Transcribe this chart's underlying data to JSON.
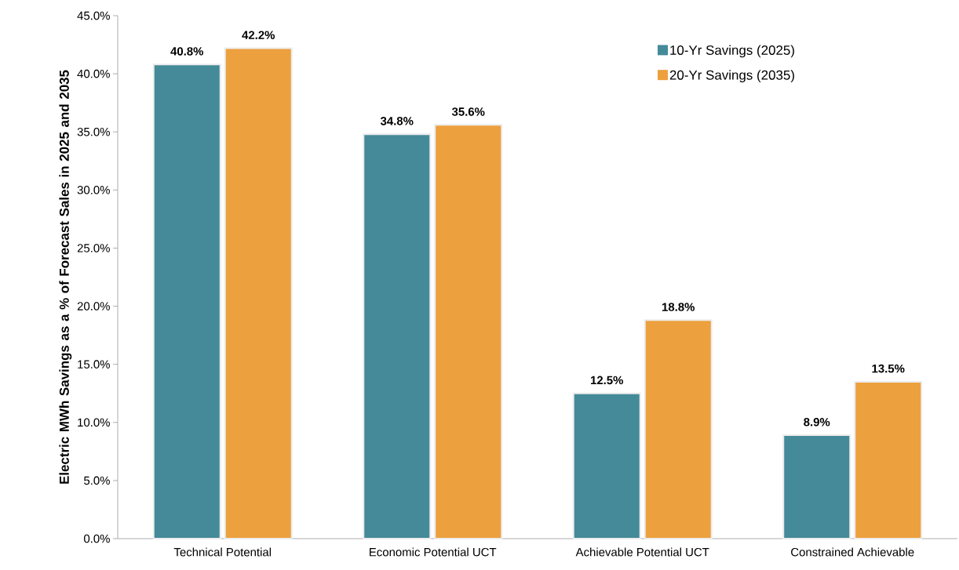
{
  "chart_data": {
    "type": "bar",
    "ylabel": "Electric MWh Savings as a % of Forecast Sales in 2025 and 2035",
    "categories": [
      "Technical Potential",
      "Economic Potential UCT",
      "Achievable Potential UCT",
      "Constrained Achievable"
    ],
    "series": [
      {
        "name": "10-Yr Savings (2025)",
        "color": "#448a99",
        "values": [
          40.8,
          34.8,
          12.5,
          8.9
        ],
        "value_labels": [
          "40.8%",
          "34.8%",
          "12.5%",
          "8.9%"
        ]
      },
      {
        "name": "20-Yr Savings (2035)",
        "color": "#eda03e",
        "values": [
          42.2,
          35.6,
          18.8,
          13.5
        ],
        "value_labels": [
          "42.2%",
          "35.6%",
          "18.8%",
          "13.5%"
        ]
      }
    ],
    "ylim": [
      0,
      45
    ],
    "yticks": [
      {
        "value": 0,
        "label": "0.0%"
      },
      {
        "value": 5,
        "label": "5.0%"
      },
      {
        "value": 10,
        "label": "10.0%"
      },
      {
        "value": 15,
        "label": "15.0%"
      },
      {
        "value": 20,
        "label": "20.0%"
      },
      {
        "value": 25,
        "label": "25.0%"
      },
      {
        "value": 30,
        "label": "30.0%"
      },
      {
        "value": 35,
        "label": "35.0%"
      },
      {
        "value": 40,
        "label": "40.0%"
      },
      {
        "value": 45,
        "label": "45.0%"
      }
    ],
    "grid": false,
    "legend": "top right"
  }
}
